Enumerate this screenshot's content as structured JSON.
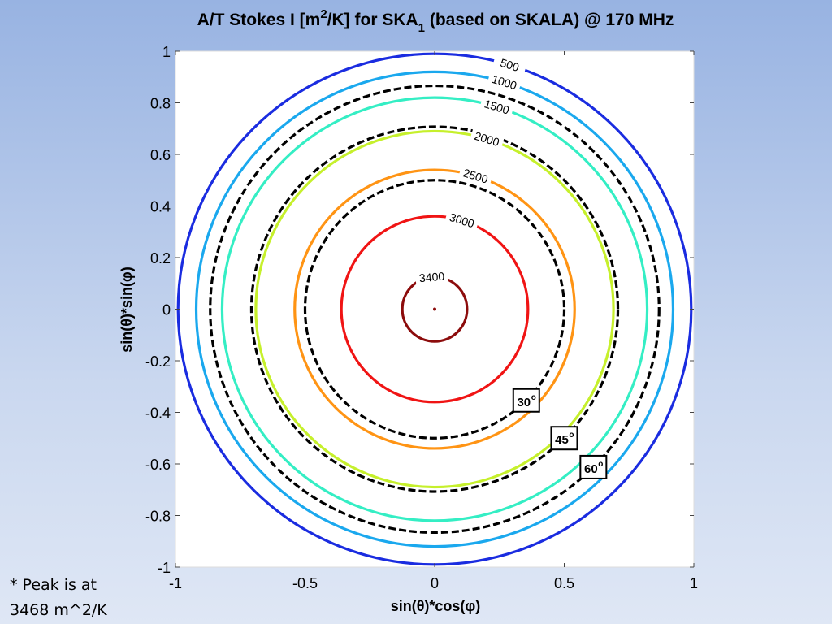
{
  "chart_data": {
    "type": "contour",
    "title": {
      "part1": "A/T Stokes I [m",
      "sup": "2",
      "part2": "/K] for SKA",
      "sub": "1",
      "part3": " (based on SKALA) @ 170 MHz"
    },
    "xlabel": "sin(θ)*cos(φ)",
    "ylabel": "sin(θ)*sin(φ)",
    "xlim": [
      -1,
      1
    ],
    "ylim": [
      -1,
      1
    ],
    "xticks": [
      "-1",
      "-0.5",
      "0",
      "0.5",
      "1"
    ],
    "xtick_values": [
      -1,
      -0.5,
      0,
      0.5,
      1
    ],
    "yticks": [
      "1",
      "0.8",
      "0.6",
      "0.4",
      "0.2",
      "0",
      "-0.2",
      "-0.4",
      "-0.6",
      "-0.8",
      "-1"
    ],
    "ytick_values": [
      1,
      0.8,
      0.6,
      0.4,
      0.2,
      0,
      -0.2,
      -0.4,
      -0.6,
      -0.8,
      -1
    ],
    "grid": false,
    "contours": [
      {
        "level": "500",
        "radius": 0.99,
        "color": "#1a2ce0"
      },
      {
        "level": "1000",
        "radius": 0.92,
        "color": "#1aa8ee"
      },
      {
        "level": "1500",
        "radius": 0.82,
        "color": "#34eec4"
      },
      {
        "level": "2000",
        "radius": 0.69,
        "color": "#c6f02c"
      },
      {
        "level": "2500",
        "radius": 0.54,
        "color": "#ff9414"
      },
      {
        "level": "3000",
        "radius": 0.36,
        "color": "#f01414"
      },
      {
        "level": "3400",
        "radius": 0.125,
        "color": "#8c0c0c"
      }
    ],
    "zenith_rings": [
      {
        "label": "30",
        "radius": 0.5
      },
      {
        "label": "45",
        "radius": 0.707
      },
      {
        "label": "60",
        "radius": 0.866
      }
    ],
    "degree_symbol": "o",
    "peak_marker": {
      "x": 0,
      "y": 0,
      "color": "#8c0c0c"
    }
  },
  "note": {
    "line1": "* Peak is at",
    "line2": "3468 m^2/K"
  }
}
